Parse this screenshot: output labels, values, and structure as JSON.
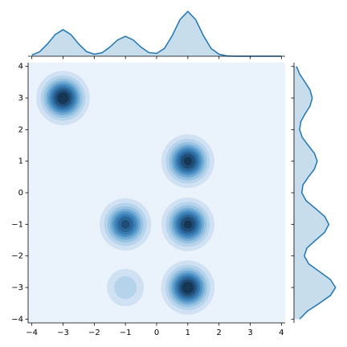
{
  "chart_data": {
    "type": "jointplot-kde",
    "xlim": [
      -4.12,
      4.12
    ],
    "ylim": [
      -4.12,
      4.12
    ],
    "xticks": [
      {
        "value": -4,
        "label": "−4"
      },
      {
        "value": -3,
        "label": "−3"
      },
      {
        "value": -2,
        "label": "−2"
      },
      {
        "value": -1,
        "label": "−1"
      },
      0,
      1,
      2,
      3,
      4
    ],
    "yticks": [
      {
        "value": -4,
        "label": "−4"
      },
      {
        "value": -3,
        "label": "−3"
      },
      {
        "value": -2,
        "label": "−2"
      },
      {
        "value": -1,
        "label": "−1"
      },
      0,
      1,
      2,
      3,
      4
    ],
    "color": "#1f77b4",
    "density": {
      "x": [
        -3,
        -1,
        -1,
        1,
        1,
        1
      ],
      "y": [
        3,
        -1,
        -3,
        1,
        -1,
        -3
      ],
      "weights": [
        1.0,
        0.85,
        0.3,
        0.95,
        0.95,
        1.0
      ],
      "bandwidth": 0.4,
      "levels": [
        0.1,
        0.2,
        0.3,
        0.4,
        0.5,
        0.6,
        0.7,
        0.8,
        0.9
      ],
      "level_colors": [
        "#cfe1f2",
        "#b5d3eb",
        "#97c2e1",
        "#75acd5",
        "#5194c6",
        "#3a7db5",
        "#2b6699",
        "#1f4d78",
        "#163753"
      ],
      "background_color": "#eaf2fb"
    },
    "top_marginal": {
      "x": [
        -4,
        -3.75,
        -3.5,
        -3.25,
        -3,
        -2.75,
        -2.5,
        -2.25,
        -2,
        -1.75,
        -1.5,
        -1.25,
        -1,
        -0.75,
        -0.5,
        -0.25,
        0,
        0.25,
        0.5,
        0.75,
        1,
        1.25,
        1.5,
        1.75,
        2,
        2.25,
        2.5,
        2.75,
        3,
        3.25,
        3.5,
        3.75,
        4
      ],
      "values": [
        0.007,
        0.027,
        0.074,
        0.131,
        0.16,
        0.131,
        0.074,
        0.028,
        0.012,
        0.021,
        0.055,
        0.098,
        0.12,
        0.098,
        0.055,
        0.022,
        0.017,
        0.047,
        0.124,
        0.221,
        0.27,
        0.221,
        0.124,
        0.046,
        0.012,
        0.002,
        0,
        0,
        0,
        0,
        0,
        0,
        0
      ],
      "ylim": [
        0,
        0.3
      ]
    },
    "right_marginal": {
      "y": [
        -4,
        -3.75,
        -3.5,
        -3.25,
        -3,
        -2.75,
        -2.5,
        -2.25,
        -2,
        -1.75,
        -1.5,
        -1.25,
        -1,
        -0.75,
        -0.5,
        -0.25,
        0,
        0.25,
        0.5,
        0.75,
        1,
        1.25,
        1.5,
        1.75,
        2,
        2.25,
        2.5,
        2.75,
        3,
        3.25,
        3.5,
        3.75,
        4
      ],
      "values": [
        0.034,
        0.08,
        0.153,
        0.22,
        0.25,
        0.22,
        0.155,
        0.089,
        0.062,
        0.078,
        0.131,
        0.185,
        0.21,
        0.185,
        0.13,
        0.073,
        0.047,
        0.054,
        0.087,
        0.123,
        0.14,
        0.123,
        0.086,
        0.05,
        0.034,
        0.041,
        0.067,
        0.097,
        0.11,
        0.097,
        0.067,
        0.035,
        0.015
      ],
      "xlim": [
        0,
        0.3
      ]
    }
  }
}
